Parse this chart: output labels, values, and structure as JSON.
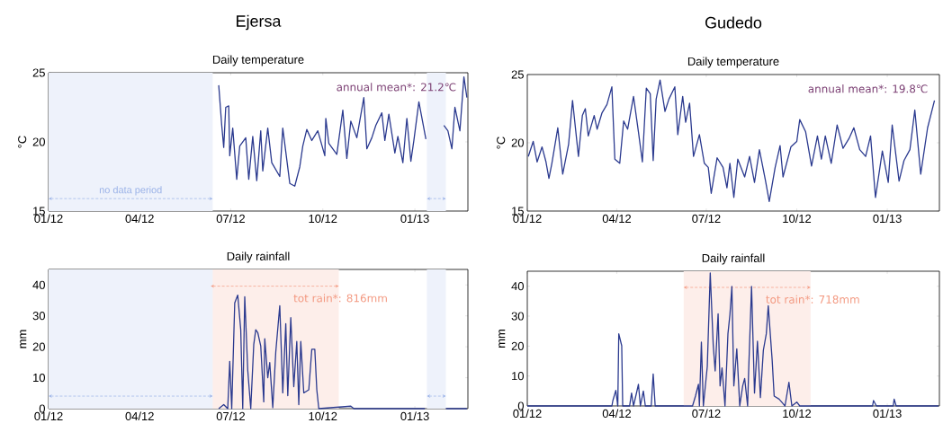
{
  "chart_data": [
    {
      "type": "line",
      "title": "Ejersa",
      "subtitle": "Daily temperature",
      "ylabel": "°C",
      "color": "#2b3a8f",
      "xlim": [
        "2012-01-01",
        "2013-02-23"
      ],
      "ylim": [
        15,
        25
      ],
      "yticks": [
        15,
        20,
        25
      ],
      "xticks": [
        {
          "value": "2012-01-01",
          "label": "01/12"
        },
        {
          "value": "2012-04-01",
          "label": "04/12"
        },
        {
          "value": "2012-07-01",
          "label": "07/12"
        },
        {
          "value": "2012-10-01",
          "label": "10/12"
        },
        {
          "value": "2013-01-01",
          "label": "01/13"
        }
      ],
      "x": [
        "2012-06-19",
        "2012-06-22",
        "2012-06-24",
        "2012-06-26",
        "2012-06-29",
        "2012-06-30",
        "2012-07-03",
        "2012-07-07",
        "2012-07-10",
        "2012-07-16",
        "2012-07-19",
        "2012-07-23",
        "2012-07-27",
        "2012-07-31",
        "2012-08-02",
        "2012-08-07",
        "2012-08-11",
        "2012-08-19",
        "2012-08-22",
        "2012-08-29",
        "2012-09-03",
        "2012-09-08",
        "2012-09-11",
        "2012-09-15",
        "2012-09-20",
        "2012-09-26",
        "2012-10-03",
        "2012-10-04",
        "2012-10-07",
        "2012-10-15",
        "2012-10-21",
        "2012-10-25",
        "2012-10-29",
        "2012-11-04",
        "2012-11-11",
        "2012-11-14",
        "2012-11-19",
        "2012-11-23",
        "2012-11-29",
        "2012-12-02",
        "2012-12-06",
        "2012-12-12",
        "2012-12-15",
        "2012-12-20",
        "2012-12-24",
        "2012-12-28",
        "2012-12-31",
        "2013-01-05",
        "2013-01-12",
        "2013-01-20",
        "2013-01-30",
        "2013-02-03",
        "2013-02-07",
        "2013-02-10",
        "2013-02-15",
        "2013-02-19",
        "2013-02-22"
      ],
      "values": [
        24.1,
        21.2,
        19.6,
        22.5,
        22.6,
        19.0,
        21.0,
        17.3,
        19.7,
        20.3,
        17.3,
        20.4,
        17.2,
        20.8,
        17.9,
        21.0,
        18.5,
        17.5,
        21.0,
        17.0,
        16.8,
        18.2,
        19.7,
        20.9,
        20.1,
        20.8,
        19.0,
        21.7,
        19.9,
        19.1,
        22.3,
        18.8,
        21.5,
        20.3,
        23.2,
        19.5,
        20.3,
        21.2,
        22.1,
        20.1,
        22.0,
        19.2,
        20.4,
        18.5,
        21.7,
        18.6,
        20.1,
        22.9,
        20.2,
        null,
        21.2,
        20.8,
        19.5,
        22.5,
        20.8,
        24.7,
        23.2
      ],
      "annotations": [
        "annual mean*: 21.2℃"
      ],
      "bands": [
        {
          "axis": "x",
          "from": "2012-01-01",
          "to": "2012-06-13",
          "label": "no data period",
          "color": "#eef2fb"
        },
        {
          "axis": "x",
          "from": "2013-01-13",
          "to": "2013-02-01",
          "color": "#eef2fb"
        }
      ]
    },
    {
      "type": "line",
      "title": "Gudedo",
      "subtitle": "Daily temperature",
      "ylabel": "°C",
      "color": "#2b3a8f",
      "xlim": [
        "2012-01-01",
        "2013-02-23"
      ],
      "ylim": [
        15,
        25
      ],
      "yticks": [
        15,
        20,
        25
      ],
      "xticks": [
        {
          "value": "2012-01-01",
          "label": "01/12"
        },
        {
          "value": "2012-04-01",
          "label": "04/12"
        },
        {
          "value": "2012-07-01",
          "label": "07/12"
        },
        {
          "value": "2012-10-01",
          "label": "10/12"
        },
        {
          "value": "2013-01-01",
          "label": "01/13"
        }
      ],
      "x": [
        "2012-01-02",
        "2012-01-07",
        "2012-01-11",
        "2012-01-16",
        "2012-01-20",
        "2012-01-23",
        "2012-01-26",
        "2012-02-01",
        "2012-02-06",
        "2012-02-12",
        "2012-02-16",
        "2012-02-22",
        "2012-02-26",
        "2012-02-29",
        "2012-03-03",
        "2012-03-09",
        "2012-03-12",
        "2012-03-17",
        "2012-03-22",
        "2012-03-27",
        "2012-03-30",
        "2012-04-04",
        "2012-04-08",
        "2012-04-12",
        "2012-04-18",
        "2012-04-23",
        "2012-04-27",
        "2012-05-01",
        "2012-05-05",
        "2012-05-08",
        "2012-05-11",
        "2012-05-15",
        "2012-05-20",
        "2012-05-24",
        "2012-05-30",
        "2012-06-02",
        "2012-06-07",
        "2012-06-10",
        "2012-06-14",
        "2012-06-18",
        "2012-06-24",
        "2012-06-29",
        "2012-07-03",
        "2012-07-06",
        "2012-07-12",
        "2012-07-18",
        "2012-07-22",
        "2012-07-25",
        "2012-07-29",
        "2012-08-02",
        "2012-08-09",
        "2012-08-14",
        "2012-08-19",
        "2012-08-24",
        "2012-08-30",
        "2012-09-03",
        "2012-09-09",
        "2012-09-14",
        "2012-09-17",
        "2012-09-25",
        "2012-10-01",
        "2012-10-04",
        "2012-10-10",
        "2012-10-16",
        "2012-10-22",
        "2012-10-26",
        "2012-10-30",
        "2012-11-05",
        "2012-11-11",
        "2012-11-17",
        "2012-11-23",
        "2012-11-28",
        "2012-12-04",
        "2012-12-10",
        "2012-12-15",
        "2012-12-20",
        "2012-12-27",
        "2013-01-02",
        "2013-01-06",
        "2013-01-13",
        "2013-01-18",
        "2013-01-24",
        "2013-01-29",
        "2013-02-04",
        "2013-02-11",
        "2013-02-18"
      ],
      "values": [
        19.0,
        20.1,
        18.6,
        19.7,
        18.6,
        17.4,
        18.5,
        21.1,
        17.7,
        19.9,
        23.1,
        19.0,
        22.0,
        22.5,
        20.5,
        22.0,
        21.0,
        22.2,
        22.8,
        24.1,
        18.8,
        18.5,
        21.6,
        21.0,
        23.4,
        20.8,
        18.6,
        24.0,
        23.6,
        18.7,
        23.2,
        24.6,
        22.3,
        23.2,
        24.1,
        20.6,
        23.4,
        21.5,
        22.9,
        19.0,
        20.6,
        18.5,
        18.2,
        16.3,
        18.9,
        18.2,
        16.7,
        18.5,
        16.0,
        18.8,
        17.5,
        19.0,
        17.1,
        19.5,
        17.3,
        15.7,
        18.2,
        19.8,
        17.5,
        19.7,
        20.1,
        21.7,
        20.8,
        18.3,
        20.5,
        18.8,
        20.5,
        18.5,
        21.3,
        19.6,
        20.3,
        21.1,
        19.5,
        19.0,
        20.5,
        16.0,
        19.4,
        17.1,
        21.3,
        17.2,
        18.7,
        19.5,
        22.4,
        17.7,
        21.1,
        23.1
      ],
      "annotations": [
        "annual mean*: 19.8℃"
      ]
    },
    {
      "type": "line",
      "title": "Daily rainfall",
      "ylabel": "mm",
      "color": "#2b3a8f",
      "xlim": [
        "2012-01-01",
        "2013-02-23"
      ],
      "ylim": [
        0,
        45
      ],
      "yticks": [
        0,
        10,
        20,
        30,
        40
      ],
      "xticks": [
        {
          "value": "2012-01-01",
          "label": "01/12"
        },
        {
          "value": "2012-04-01",
          "label": "04/12"
        },
        {
          "value": "2012-07-01",
          "label": "07/12"
        },
        {
          "value": "2012-10-01",
          "label": "10/12"
        },
        {
          "value": "2013-01-01",
          "label": "01/13"
        }
      ],
      "x": [
        "2012-06-19",
        "2012-06-24",
        "2012-06-28",
        "2012-06-30",
        "2012-07-02",
        "2012-07-05",
        "2012-07-08",
        "2012-07-11",
        "2012-07-13",
        "2012-07-15",
        "2012-07-18",
        "2012-07-21",
        "2012-07-24",
        "2012-07-26",
        "2012-07-28",
        "2012-07-31",
        "2012-08-03",
        "2012-08-04",
        "2012-08-07",
        "2012-08-09",
        "2012-08-12",
        "2012-08-15",
        "2012-08-19",
        "2012-08-22",
        "2012-08-25",
        "2012-08-27",
        "2012-08-30",
        "2012-09-02",
        "2012-09-05",
        "2012-09-07",
        "2012-09-09",
        "2012-09-12",
        "2012-09-17",
        "2012-09-20",
        "2012-09-23",
        "2012-09-25",
        "2012-09-27",
        "2012-10-29",
        "2012-11-01",
        "2013-01-11",
        "2013-01-20",
        "2013-02-01",
        "2013-02-22"
      ],
      "values": [
        0,
        1.3,
        0,
        15.3,
        0,
        34.2,
        36.7,
        25.5,
        0,
        36.2,
        12.4,
        0,
        20.7,
        25.5,
        24.6,
        20.2,
        2.2,
        22.6,
        10,
        14.9,
        0.3,
        18.3,
        33.3,
        5.1,
        27.5,
        4.2,
        29.4,
        7.1,
        21.7,
        1.3,
        21.7,
        5.1,
        6.1,
        19.2,
        19.2,
        6.1,
        0,
        0.8,
        0,
        0,
        null,
        0,
        0
      ],
      "bands": [
        {
          "axis": "x",
          "from": "2012-01-01",
          "to": "2012-06-13",
          "color": "#eef2fb"
        },
        {
          "axis": "x",
          "from": "2013-01-13",
          "to": "2013-02-01",
          "color": "#eef2fb"
        },
        {
          "axis": "x",
          "from": "2012-06-11",
          "to": "2012-10-17",
          "label": "tot rain*: 816mm",
          "color": "#fdeeea"
        }
      ]
    },
    {
      "type": "line",
      "title": "Daily rainfall",
      "ylabel": "mm",
      "color": "#2b3a8f",
      "xlim": [
        "2012-01-01",
        "2013-02-23"
      ],
      "ylim": [
        0,
        45
      ],
      "yticks": [
        0,
        10,
        20,
        30,
        40
      ],
      "xticks": [
        {
          "value": "2012-01-01",
          "label": "01/12"
        },
        {
          "value": "2012-04-01",
          "label": "04/12"
        },
        {
          "value": "2012-07-01",
          "label": "07/12"
        },
        {
          "value": "2012-10-01",
          "label": "10/12"
        },
        {
          "value": "2013-01-01",
          "label": "01/13"
        }
      ],
      "x": [
        "2012-01-01",
        "2012-03-27",
        "2012-03-28",
        "2012-03-31",
        "2012-04-02",
        "2012-04-03",
        "2012-04-06",
        "2012-04-07",
        "2012-04-14",
        "2012-04-16",
        "2012-04-18",
        "2012-04-23",
        "2012-04-25",
        "2012-04-28",
        "2012-04-30",
        "2012-05-06",
        "2012-05-08",
        "2012-05-10",
        "2012-06-17",
        "2012-06-20",
        "2012-06-23",
        "2012-06-24",
        "2012-06-26",
        "2012-06-28",
        "2012-07-02",
        "2012-07-05",
        "2012-07-08",
        "2012-07-10",
        "2012-07-13",
        "2012-07-15",
        "2012-07-17",
        "2012-07-20",
        "2012-07-23",
        "2012-07-25",
        "2012-07-27",
        "2012-07-29",
        "2012-08-01",
        "2012-08-04",
        "2012-08-07",
        "2012-08-09",
        "2012-08-12",
        "2012-08-13",
        "2012-08-16",
        "2012-08-19",
        "2012-08-22",
        "2012-08-25",
        "2012-08-28",
        "2012-08-31",
        "2012-09-02",
        "2012-09-06",
        "2012-09-08",
        "2012-09-13",
        "2012-09-17",
        "2012-09-19",
        "2012-09-23",
        "2012-09-26",
        "2012-10-01",
        "2012-10-04",
        "2012-12-17",
        "2012-12-18",
        "2012-12-21",
        "2013-01-07",
        "2013-01-08",
        "2013-01-10",
        "2013-02-22"
      ],
      "values": [
        0,
        0,
        1.8,
        5.2,
        0,
        24.1,
        20.1,
        0,
        0,
        4.3,
        0,
        7.2,
        0,
        5.0,
        0,
        0,
        10.7,
        0,
        0,
        3.3,
        7.2,
        0,
        21.3,
        0,
        13.2,
        44.4,
        20.6,
        11.7,
        30.8,
        6.7,
        12.7,
        0,
        24.1,
        30.5,
        39.9,
        6.7,
        19.1,
        0,
        6.7,
        9.2,
        0,
        11.2,
        39.9,
        4.3,
        21.6,
        2.8,
        18.6,
        24.1,
        33.5,
        15.1,
        3.3,
        2.3,
        0.8,
        0,
        7.9,
        0,
        1.3,
        0,
        0,
        1.8,
        0,
        0,
        2.3,
        0,
        0
      ],
      "bands": [
        {
          "axis": "x",
          "from": "2012-06-08",
          "to": "2012-10-15",
          "label": "tot rain*: 718mm",
          "color": "#fdeeea"
        }
      ]
    }
  ]
}
